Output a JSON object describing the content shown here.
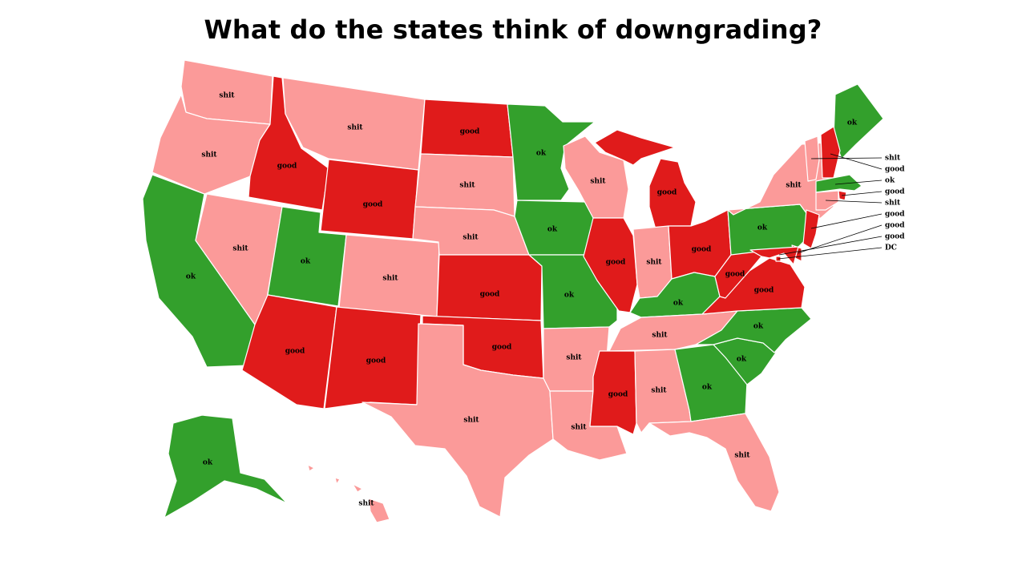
{
  "title": "What do the states think of downgrading?",
  "colors": {
    "good": "#e01b1b",
    "shit": "#fb9a99",
    "ok": "#33a02c"
  },
  "states": [
    {
      "id": "wa",
      "label": "shit"
    },
    {
      "id": "or",
      "label": "shit"
    },
    {
      "id": "ca",
      "label": "ok"
    },
    {
      "id": "id",
      "label": "good"
    },
    {
      "id": "nv",
      "label": "shit"
    },
    {
      "id": "mt",
      "label": "shit"
    },
    {
      "id": "wy",
      "label": "good"
    },
    {
      "id": "ut",
      "label": "ok"
    },
    {
      "id": "az",
      "label": "good"
    },
    {
      "id": "co",
      "label": "shit"
    },
    {
      "id": "nm",
      "label": "good"
    },
    {
      "id": "nd",
      "label": "good"
    },
    {
      "id": "sd",
      "label": "shit"
    },
    {
      "id": "ne",
      "label": "shit"
    },
    {
      "id": "ks",
      "label": "good"
    },
    {
      "id": "ok",
      "label": "good"
    },
    {
      "id": "tx",
      "label": "shit"
    },
    {
      "id": "mn",
      "label": "ok"
    },
    {
      "id": "ia",
      "label": "ok"
    },
    {
      "id": "mo",
      "label": "ok"
    },
    {
      "id": "ar",
      "label": "shit"
    },
    {
      "id": "la",
      "label": "shit"
    },
    {
      "id": "wi",
      "label": "shit"
    },
    {
      "id": "il",
      "label": "good"
    },
    {
      "id": "mi",
      "label": "good"
    },
    {
      "id": "in",
      "label": "shit"
    },
    {
      "id": "oh",
      "label": "good"
    },
    {
      "id": "ky",
      "label": "ok"
    },
    {
      "id": "tn",
      "label": "shit"
    },
    {
      "id": "ms",
      "label": "good"
    },
    {
      "id": "al",
      "label": "shit"
    },
    {
      "id": "ga",
      "label": "ok"
    },
    {
      "id": "fl",
      "label": "shit"
    },
    {
      "id": "sc",
      "label": "ok"
    },
    {
      "id": "nc",
      "label": "ok"
    },
    {
      "id": "va",
      "label": "good"
    },
    {
      "id": "wv",
      "label": "good"
    },
    {
      "id": "pa",
      "label": "ok"
    },
    {
      "id": "ny",
      "label": "shit"
    },
    {
      "id": "me",
      "label": "ok"
    },
    {
      "id": "ak",
      "label": "ok"
    },
    {
      "id": "hi",
      "label": "shit"
    },
    {
      "id": "vt",
      "label": "shit"
    },
    {
      "id": "nh",
      "label": "good"
    },
    {
      "id": "ma",
      "label": "ok"
    },
    {
      "id": "ri",
      "label": "good"
    },
    {
      "id": "ct",
      "label": "shit"
    },
    {
      "id": "nj",
      "label": "good"
    },
    {
      "id": "de",
      "label": "good"
    },
    {
      "id": "md",
      "label": "good"
    },
    {
      "id": "dc",
      "label": "good"
    }
  ],
  "callouts": [
    {
      "id": "vt",
      "text": "shit"
    },
    {
      "id": "nh",
      "text": "good"
    },
    {
      "id": "ma",
      "text": "ok"
    },
    {
      "id": "ri",
      "text": "good"
    },
    {
      "id": "ct",
      "text": "shit"
    },
    {
      "id": "nj",
      "text": "good"
    },
    {
      "id": "de",
      "text": "good"
    },
    {
      "id": "md",
      "text": "good"
    },
    {
      "id": "dc",
      "text": "DC"
    }
  ]
}
